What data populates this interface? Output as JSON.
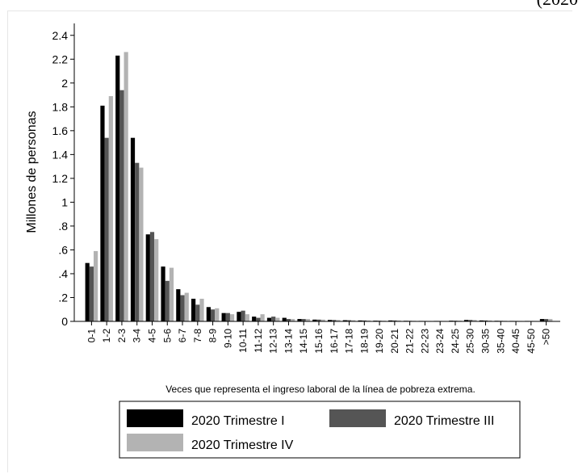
{
  "header_fragment": "(2020",
  "chart_data": {
    "type": "bar",
    "title": "",
    "xlabel": "Veces que representa el ingreso laboral de la línea de pobreza extrema.",
    "ylabel": "Millones de personas",
    "ylim": [
      0,
      2.5
    ],
    "yticks": [
      0,
      0.2,
      0.4,
      0.6,
      0.8,
      1,
      1.2,
      1.4,
      1.6,
      1.8,
      2,
      2.2,
      2.4
    ],
    "ytick_labels": [
      "0",
      ".2",
      ".4",
      ".6",
      ".8",
      "1",
      "1.2",
      "1.4",
      "1.6",
      "1.8",
      "2",
      "2.2",
      "2.4"
    ],
    "grid": false,
    "legend_position": "bottom",
    "categories": [
      "0-1",
      "1-2",
      "2-3",
      "3-4",
      "4-5",
      "5-6",
      "6-7",
      "7-8",
      "8-9",
      "9-10",
      "10-11",
      "11-12",
      "12-13",
      "13-14",
      "14-15",
      "15-16",
      "16-17",
      "17-18",
      "18-19",
      "19-20",
      "20-21",
      "21-22",
      "22-23",
      "23-24",
      "24-25",
      "25-30",
      "30-35",
      "35-40",
      "40-45",
      "45-50",
      ">50"
    ],
    "series": [
      {
        "name": "2020 Trimestre I",
        "color": "#000000",
        "values": [
          0.49,
          1.81,
          2.23,
          1.54,
          0.73,
          0.46,
          0.27,
          0.19,
          0.12,
          0.07,
          0.08,
          0.04,
          0.03,
          0.03,
          0.02,
          0.015,
          0.012,
          0.01,
          0.008,
          0.006,
          0.008,
          0.005,
          0.004,
          0.004,
          0.006,
          0.012,
          0.008,
          0.005,
          0.004,
          0.004,
          0.02
        ]
      },
      {
        "name": "2020 Trimestre III",
        "color": "#555555",
        "values": [
          0.46,
          1.54,
          1.94,
          1.33,
          0.75,
          0.34,
          0.22,
          0.14,
          0.1,
          0.07,
          0.09,
          0.03,
          0.04,
          0.02,
          0.02,
          0.015,
          0.012,
          0.01,
          0.008,
          0.006,
          0.008,
          0.005,
          0.004,
          0.004,
          0.006,
          0.012,
          0.008,
          0.005,
          0.004,
          0.004,
          0.02
        ]
      },
      {
        "name": "2020 Trimestre IV",
        "color": "#b3b3b3",
        "values": [
          0.59,
          1.89,
          2.26,
          1.29,
          0.69,
          0.45,
          0.24,
          0.19,
          0.11,
          0.06,
          0.06,
          0.06,
          0.03,
          0.02,
          0.02,
          0.015,
          0.012,
          0.01,
          0.008,
          0.006,
          0.008,
          0.005,
          0.004,
          0.004,
          0.006,
          0.012,
          0.008,
          0.005,
          0.004,
          0.004,
          0.02
        ]
      }
    ]
  }
}
